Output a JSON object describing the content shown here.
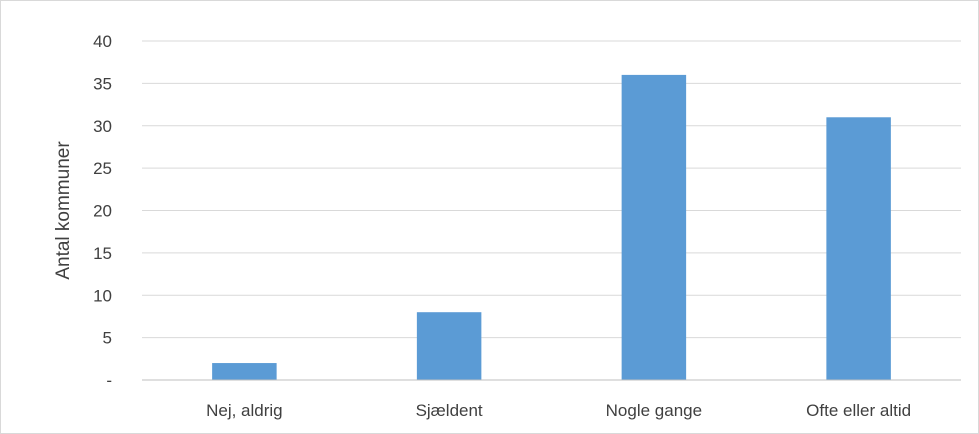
{
  "chart_data": {
    "type": "bar",
    "title": "",
    "xlabel": "",
    "ylabel": "Antal kommuner",
    "categories": [
      "Nej, aldrig",
      "Sjældent",
      "Nogle gange",
      "Ofte eller altid"
    ],
    "values": [
      2,
      8,
      36,
      31
    ],
    "ylim": [
      0,
      40
    ],
    "yticks": [
      0,
      5,
      10,
      15,
      20,
      25,
      30,
      35,
      40
    ],
    "ytick_labels": [
      "-",
      "5",
      "10",
      "15",
      "20",
      "25",
      "30",
      "35",
      "40"
    ],
    "grid": true,
    "legend": "none",
    "colors": {
      "bar": "#5b9bd5",
      "grid": "#d9d9d9",
      "axis": "#bfbfbf",
      "text": "#404040"
    }
  }
}
